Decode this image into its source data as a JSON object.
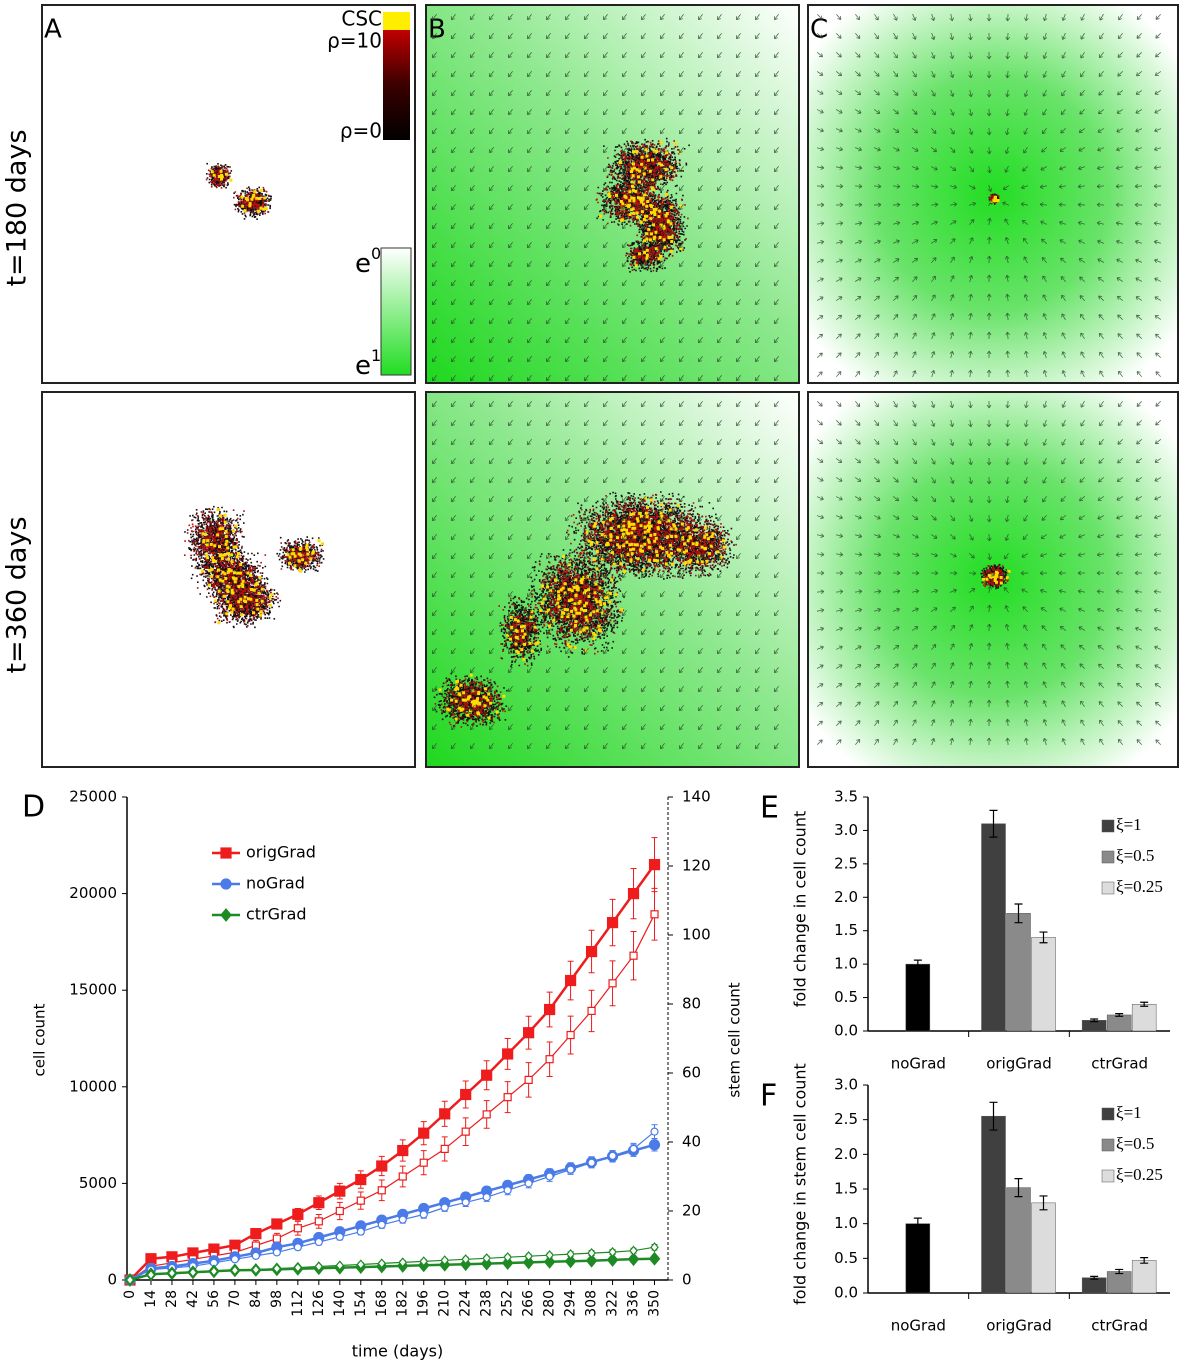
{
  "panels": {
    "letters": [
      "A",
      "B",
      "C"
    ],
    "rows": [
      "t=180 days",
      "t=360 days"
    ],
    "rho_bar": {
      "top": "CSC",
      "max": "ρ=10",
      "min": "ρ=0"
    },
    "e_bar": {
      "top": {
        "base": "e",
        "exp": "0"
      },
      "bottom": {
        "base": "e",
        "exp": "1"
      }
    }
  },
  "chart_data": [
    {
      "type": "line",
      "letter": "D",
      "xlabel": "time (days)",
      "ylabel": "cell count",
      "y2label": "stem cell count",
      "x": [
        0,
        14,
        28,
        42,
        56,
        70,
        84,
        98,
        112,
        126,
        140,
        154,
        168,
        182,
        196,
        210,
        224,
        238,
        252,
        266,
        280,
        294,
        308,
        322,
        336,
        350
      ],
      "xlim": [
        -2,
        359
      ],
      "xticks": [
        0,
        14,
        28,
        42,
        56,
        70,
        84,
        98,
        112,
        126,
        140,
        154,
        168,
        182,
        196,
        210,
        224,
        238,
        252,
        266,
        280,
        294,
        308,
        322,
        336,
        350
      ],
      "ylim": [
        0,
        25000
      ],
      "yticks": [
        0,
        5000,
        10000,
        15000,
        20000,
        25000
      ],
      "y2lim": [
        0,
        140
      ],
      "y2ticks": [
        0,
        20,
        40,
        60,
        80,
        100,
        120,
        140
      ],
      "series": [
        {
          "name": "origGrad",
          "color": "#ee1c1c",
          "marker": "square",
          "filled": true,
          "values": [
            0,
            1100,
            1200,
            1400,
            1600,
            1800,
            2400,
            2900,
            3400,
            4000,
            4600,
            5200,
            5900,
            6700,
            7600,
            8600,
            9600,
            10600,
            11700,
            12800,
            14000,
            15500,
            17000,
            18500,
            20000,
            21500
          ],
          "errors": [
            0,
            100,
            100,
            120,
            150,
            150,
            200,
            250,
            300,
            350,
            400,
            450,
            500,
            550,
            600,
            650,
            700,
            750,
            800,
            850,
            900,
            1000,
            1100,
            1200,
            1300,
            1400
          ]
        },
        {
          "color": "#ee1c1c",
          "marker": "square",
          "filled": false,
          "axis": "y2",
          "values": [
            0,
            4,
            5,
            6,
            7,
            8,
            10,
            12,
            15,
            17,
            20,
            23,
            26,
            30,
            34,
            38,
            43,
            48,
            53,
            58,
            64,
            71,
            78,
            86,
            94,
            106
          ],
          "errors": [
            0,
            1,
            1,
            1,
            1,
            1,
            1.5,
            1.5,
            2,
            2,
            2.5,
            2.5,
            3,
            3,
            3.5,
            3.5,
            4,
            4,
            4.5,
            5,
            5,
            5.5,
            6,
            6.5,
            7,
            7.5
          ]
        },
        {
          "name": "noGrad",
          "color": "#4a7be8",
          "marker": "circle",
          "filled": true,
          "values": [
            0,
            600,
            700,
            850,
            1000,
            1200,
            1400,
            1700,
            1900,
            2200,
            2500,
            2800,
            3100,
            3400,
            3700,
            4000,
            4300,
            4600,
            4900,
            5200,
            5500,
            5800,
            6100,
            6400,
            6700,
            7000
          ],
          "errors": [
            0,
            80,
            80,
            90,
            100,
            100,
            120,
            130,
            140,
            150,
            160,
            170,
            180,
            190,
            200,
            210,
            220,
            230,
            240,
            250,
            260,
            270,
            280,
            290,
            300,
            320
          ]
        },
        {
          "color": "#4a7be8",
          "marker": "circle",
          "filled": false,
          "axis": "y2",
          "values": [
            0,
            3,
            3.5,
            4,
            5,
            6,
            7,
            8,
            9.5,
            11,
            12.5,
            14,
            16,
            17.5,
            19,
            21,
            22.5,
            24,
            26,
            28,
            30,
            32,
            34,
            36,
            38,
            43
          ],
          "errors": [
            0,
            0.5,
            0.5,
            0.5,
            0.6,
            0.6,
            0.7,
            0.7,
            0.8,
            0.8,
            0.9,
            0.9,
            1,
            1,
            1.1,
            1.1,
            1.2,
            1.2,
            1.3,
            1.3,
            1.4,
            1.4,
            1.5,
            1.5,
            1.6,
            2
          ]
        },
        {
          "name": "ctrGrad",
          "color": "#1e8a24",
          "marker": "diamond",
          "filled": true,
          "values": [
            0,
            300,
            350,
            400,
            450,
            500,
            520,
            550,
            580,
            610,
            640,
            670,
            700,
            730,
            760,
            790,
            820,
            850,
            880,
            910,
            940,
            970,
            1000,
            1040,
            1080,
            1100
          ],
          "errors": [
            0,
            40,
            40,
            40,
            40,
            40,
            45,
            45,
            45,
            50,
            50,
            50,
            55,
            55,
            55,
            60,
            60,
            60,
            65,
            65,
            65,
            70,
            70,
            70,
            75,
            80
          ]
        },
        {
          "color": "#1e8a24",
          "marker": "diamond",
          "filled": false,
          "axis": "y2",
          "values": [
            0,
            1.5,
            2,
            2.2,
            2.5,
            2.8,
            3,
            3.3,
            3.6,
            3.9,
            4.2,
            4.5,
            4.8,
            5.1,
            5.4,
            5.7,
            6,
            6.3,
            6.6,
            6.9,
            7.2,
            7.5,
            7.8,
            8.1,
            8.5,
            9.5
          ],
          "errors": [
            0,
            0.3,
            0.3,
            0.3,
            0.3,
            0.3,
            0.4,
            0.4,
            0.4,
            0.4,
            0.4,
            0.5,
            0.5,
            0.5,
            0.5,
            0.5,
            0.6,
            0.6,
            0.6,
            0.6,
            0.6,
            0.7,
            0.7,
            0.7,
            0.7,
            0.8
          ]
        }
      ]
    },
    {
      "type": "bar",
      "letter": "E",
      "ylabel": "fold change in cell count",
      "categories": [
        "noGrad",
        "origGrad",
        "ctrGrad"
      ],
      "ylim": [
        0,
        3.5
      ],
      "yticks": [
        {
          "value": 0,
          "label": "0.0"
        },
        0.5,
        {
          "value": 1,
          "label": "1.0"
        },
        1.5,
        {
          "value": 2,
          "label": "2.0"
        },
        2.5,
        {
          "value": 3,
          "label": "3.0"
        },
        3.5
      ],
      "series": [
        {
          "color": "#000000",
          "values": [
            1.0,
            null,
            null
          ],
          "errors": [
            0.06,
            null,
            null
          ]
        },
        {
          "name": "ξ=1",
          "color": "#404040",
          "values": [
            null,
            3.1,
            0.16
          ],
          "errors": [
            null,
            0.2,
            0.02
          ]
        },
        {
          "name": "ξ=0.5",
          "color": "#8a8a8a",
          "values": [
            null,
            1.76,
            0.24
          ],
          "errors": [
            null,
            0.14,
            0.02
          ]
        },
        {
          "name": "ξ=0.25",
          "color": "#dcdcdc",
          "values": [
            null,
            1.4,
            0.4
          ],
          "errors": [
            null,
            0.08,
            0.03
          ]
        }
      ]
    },
    {
      "type": "bar",
      "letter": "F",
      "ylabel": "fold change in stem cell count",
      "categories": [
        "noGrad",
        "origGrad",
        "ctrGrad"
      ],
      "ylim": [
        0,
        3.0
      ],
      "yticks": [
        {
          "value": 0,
          "label": "0.0"
        },
        0.5,
        {
          "value": 1,
          "label": "1.0"
        },
        1.5,
        {
          "value": 2,
          "label": "2.0"
        },
        2.5,
        {
          "value": 3,
          "label": "3.0"
        }
      ],
      "series": [
        {
          "color": "#000000",
          "values": [
            1.0,
            null,
            null
          ],
          "errors": [
            0.08,
            null,
            null
          ]
        },
        {
          "name": "ξ=1",
          "color": "#404040",
          "values": [
            null,
            2.55,
            0.22
          ],
          "errors": [
            null,
            0.2,
            0.02
          ]
        },
        {
          "name": "ξ=0.5",
          "color": "#8a8a8a",
          "values": [
            null,
            1.52,
            0.31
          ],
          "errors": [
            null,
            0.13,
            0.03
          ]
        },
        {
          "name": "ξ=0.25",
          "color": "#dcdcdc",
          "values": [
            null,
            1.3,
            0.47
          ],
          "errors": [
            null,
            0.1,
            0.04
          ]
        }
      ]
    }
  ]
}
